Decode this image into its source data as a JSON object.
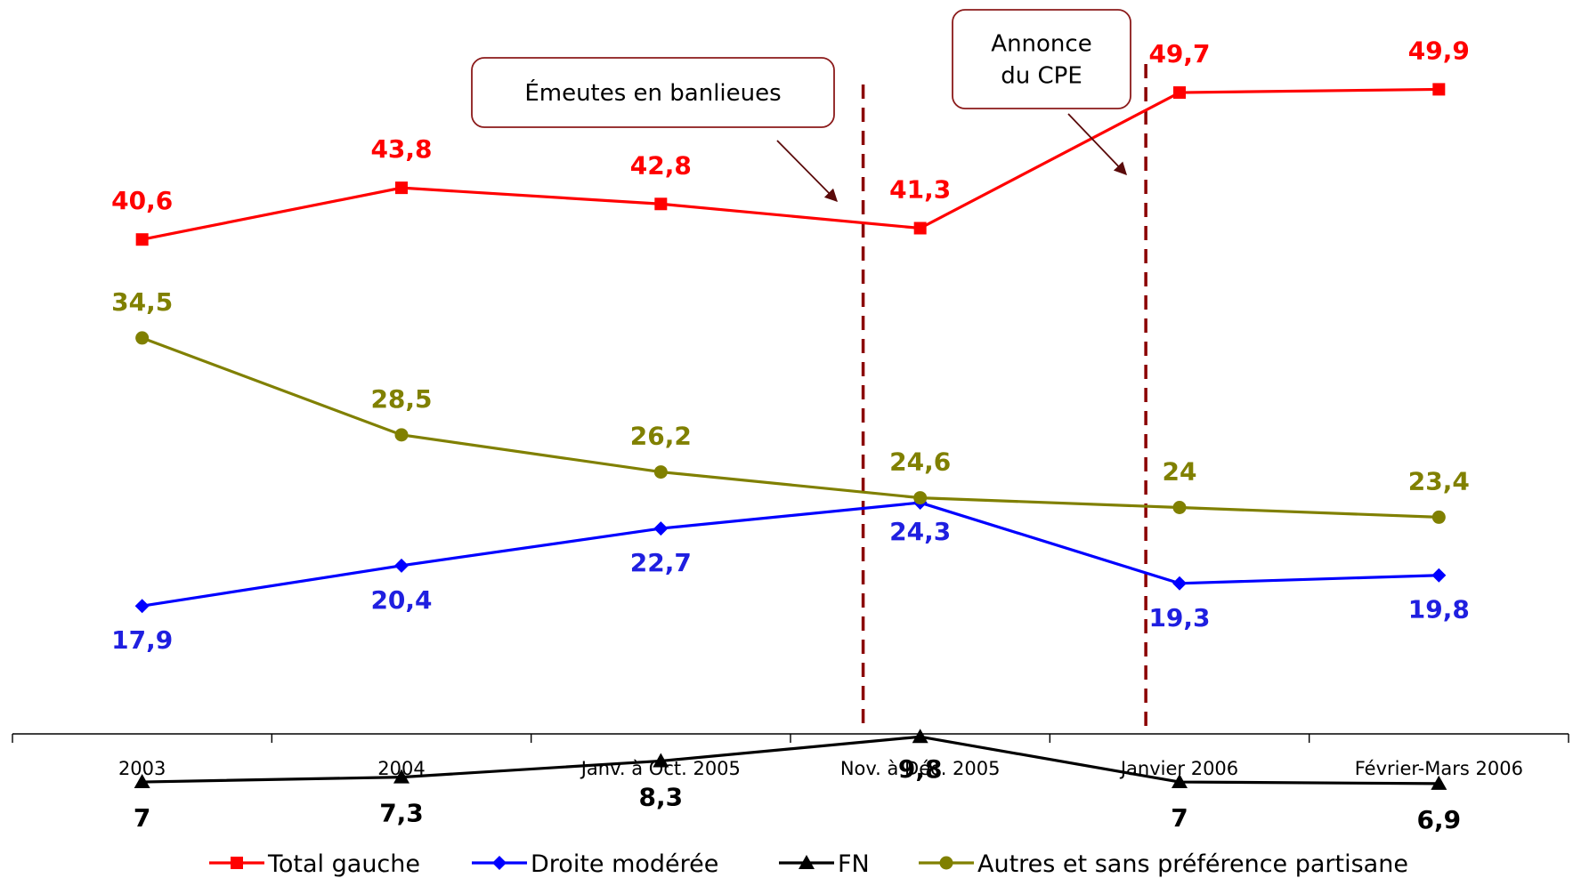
{
  "chart_data": {
    "type": "line",
    "categories": [
      "2003",
      "2004",
      "Janv. à Oct. 2005",
      "Nov. à Déc. 2005",
      "Janvier 2006",
      "Février-Mars 2006"
    ],
    "series": [
      {
        "name": "Total gauche",
        "values": [
          40.6,
          43.8,
          42.8,
          41.3,
          49.7,
          49.9
        ],
        "labels": [
          "40,6",
          "43,8",
          "42,8",
          "41,3",
          "49,7",
          "49,9"
        ],
        "color": "#ff0000",
        "marker": "square",
        "label_color": "#ff0000"
      },
      {
        "name": "Droite modérée",
        "values": [
          17.9,
          20.4,
          22.7,
          24.3,
          19.3,
          19.8
        ],
        "labels": [
          "17,9",
          "20,4",
          "22,7",
          "24,3",
          "19,3",
          "19,8"
        ],
        "color": "#0000ff",
        "marker": "diamond",
        "label_color": "#1f1fe0"
      },
      {
        "name": "FN",
        "values": [
          7,
          7.3,
          8.3,
          9.8,
          7,
          6.9
        ],
        "labels": [
          "7",
          "7,3",
          "8,3",
          "9,8",
          "7",
          "6,9"
        ],
        "color": "#000000",
        "marker": "triangle",
        "label_color": "#000000"
      },
      {
        "name": "Autres et sans préférence partisane",
        "values": [
          34.5,
          28.5,
          26.2,
          24.6,
          24,
          23.4
        ],
        "labels": [
          "34,5",
          "28,5",
          "26,2",
          "24,6",
          "24",
          "23,4"
        ],
        "color": "#808000",
        "marker": "circle",
        "label_color": "#808000"
      }
    ],
    "annotations": [
      {
        "text_lines": [
          "Émeutes en banlieues"
        ],
        "marker_color": "#8b0000"
      },
      {
        "text_lines": [
          "Annonce",
          "du CPE"
        ],
        "marker_color": "#8b0000"
      }
    ],
    "ylim": [
      0,
      55
    ],
    "grid": false,
    "legend_position": "bottom"
  }
}
